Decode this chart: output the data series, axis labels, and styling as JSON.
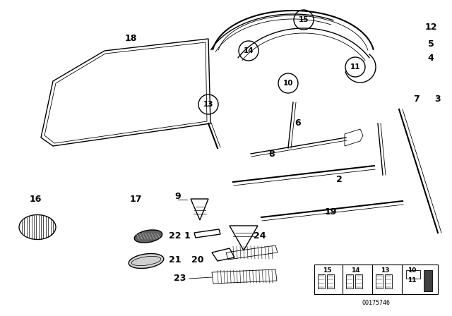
{
  "bg_color": "#ffffff",
  "line_color": "#000000",
  "figsize": [
    6.4,
    4.48
  ],
  "dpi": 100,
  "footer_text": "OO175746"
}
